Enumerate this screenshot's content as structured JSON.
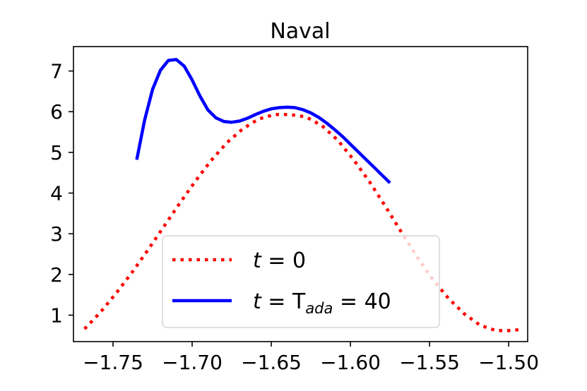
{
  "chart_data": {
    "type": "line",
    "title": "Naval",
    "xlabel": "",
    "ylabel": "",
    "xlim": [
      -1.775,
      -1.488
    ],
    "ylim": [
      0.35,
      7.6
    ],
    "xticks": [
      -1.75,
      -1.7,
      -1.65,
      -1.6,
      -1.55,
      -1.5
    ],
    "xtick_labels": [
      "−1.75",
      "−1.70",
      "−1.65",
      "−1.60",
      "−1.55",
      "−1.50"
    ],
    "yticks": [
      1,
      2,
      3,
      4,
      5,
      6,
      7
    ],
    "ytick_labels": [
      "1",
      "2",
      "3",
      "4",
      "5",
      "6",
      "7"
    ],
    "legend_position": "lower-center",
    "grid": false,
    "series": [
      {
        "name": "t = 0",
        "legend": {
          "pre": "t",
          "mid": " = 0",
          "sub": "",
          "post": ""
        },
        "color": "#ff0000",
        "style": "dotted",
        "x": [
          -1.768,
          -1.758,
          -1.748,
          -1.738,
          -1.728,
          -1.718,
          -1.708,
          -1.698,
          -1.688,
          -1.678,
          -1.668,
          -1.658,
          -1.648,
          -1.638,
          -1.628,
          -1.618,
          -1.608,
          -1.598,
          -1.588,
          -1.578,
          -1.568,
          -1.558,
          -1.548,
          -1.538,
          -1.528,
          -1.518,
          -1.508,
          -1.498,
          -1.491
        ],
        "y": [
          0.66,
          1.07,
          1.54,
          2.05,
          2.6,
          3.17,
          3.74,
          4.29,
          4.8,
          5.24,
          5.58,
          5.82,
          5.93,
          5.93,
          5.87,
          5.66,
          5.3,
          4.82,
          4.28,
          3.68,
          3.05,
          2.44,
          1.88,
          1.41,
          1.03,
          0.75,
          0.62,
          0.62,
          0.66
        ]
      },
      {
        "name": "t = T_ada = 40",
        "legend": {
          "pre": "t",
          "mid": " = T",
          "sub": "ada",
          "post": " = 40"
        },
        "color": "#0000ff",
        "style": "solid",
        "x": [
          -1.735,
          -1.73,
          -1.725,
          -1.72,
          -1.715,
          -1.71,
          -1.705,
          -1.7,
          -1.695,
          -1.69,
          -1.685,
          -1.68,
          -1.675,
          -1.67,
          -1.665,
          -1.66,
          -1.655,
          -1.65,
          -1.645,
          -1.64,
          -1.635,
          -1.63,
          -1.625,
          -1.62,
          -1.615,
          -1.61,
          -1.605,
          -1.6,
          -1.595,
          -1.59,
          -1.585,
          -1.58,
          -1.575
        ],
        "y": [
          4.82,
          5.8,
          6.55,
          7.02,
          7.26,
          7.28,
          7.12,
          6.78,
          6.38,
          6.04,
          5.85,
          5.76,
          5.74,
          5.77,
          5.84,
          5.93,
          6.01,
          6.07,
          6.1,
          6.11,
          6.1,
          6.05,
          5.97,
          5.86,
          5.72,
          5.56,
          5.39,
          5.2,
          5.01,
          4.82,
          4.63,
          4.44,
          4.25
        ]
      }
    ]
  }
}
